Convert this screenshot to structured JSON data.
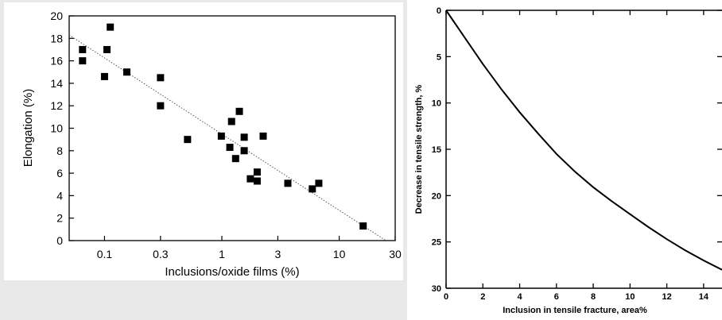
{
  "chart_data": [
    {
      "type": "scatter",
      "xscale": "log",
      "xlabel": "Inclusions/oxide films (%)",
      "ylabel": "Elongation (%)",
      "xlim": [
        0.05,
        30
      ],
      "ylim": [
        0,
        20
      ],
      "xticks": [
        0.1,
        0.3,
        1,
        3,
        10,
        30
      ],
      "xtick_labels": [
        "0.1",
        "0.3",
        "1",
        "3",
        "10",
        "30"
      ],
      "yticks": [
        0,
        2,
        4,
        6,
        8,
        10,
        12,
        14,
        16,
        18,
        20
      ],
      "grid": false,
      "points": [
        {
          "x": 0.065,
          "y": 17.0
        },
        {
          "x": 0.065,
          "y": 16.0
        },
        {
          "x": 0.1,
          "y": 14.6
        },
        {
          "x": 0.105,
          "y": 17.0
        },
        {
          "x": 0.112,
          "y": 19.0
        },
        {
          "x": 0.155,
          "y": 15.0
        },
        {
          "x": 0.3,
          "y": 14.5
        },
        {
          "x": 0.3,
          "y": 12.0
        },
        {
          "x": 0.51,
          "y": 9.0
        },
        {
          "x": 0.99,
          "y": 9.3
        },
        {
          "x": 1.17,
          "y": 8.3
        },
        {
          "x": 1.21,
          "y": 10.6
        },
        {
          "x": 1.31,
          "y": 7.3
        },
        {
          "x": 1.41,
          "y": 11.5
        },
        {
          "x": 1.55,
          "y": 8.0
        },
        {
          "x": 1.55,
          "y": 9.2
        },
        {
          "x": 1.75,
          "y": 5.5
        },
        {
          "x": 2.0,
          "y": 6.1
        },
        {
          "x": 2.0,
          "y": 5.3
        },
        {
          "x": 2.25,
          "y": 9.3
        },
        {
          "x": 3.65,
          "y": 5.1
        },
        {
          "x": 5.9,
          "y": 4.6
        },
        {
          "x": 6.7,
          "y": 5.1
        },
        {
          "x": 16.0,
          "y": 1.3
        }
      ],
      "trend_line": {
        "x": [
          0.05,
          25.0
        ],
        "y": [
          18.3,
          0.0
        ],
        "style": "dotted"
      }
    },
    {
      "type": "line",
      "xlabel": "Inclusion in tensile fracture, area%",
      "ylabel": "Decrease in tensile strength, %",
      "xlim": [
        0,
        15
      ],
      "ylim": [
        0,
        30
      ],
      "y_inverted": true,
      "xticks": [
        0,
        2,
        4,
        6,
        8,
        10,
        12,
        14
      ],
      "yticks": [
        0,
        5,
        10,
        15,
        20,
        25,
        30
      ],
      "grid": false,
      "series": [
        {
          "x": [
            0,
            1,
            2,
            3,
            4,
            5,
            6,
            7,
            8,
            9,
            10,
            11,
            12,
            13,
            14,
            15
          ],
          "y": [
            0,
            2.9,
            5.8,
            8.5,
            11.0,
            13.3,
            15.5,
            17.4,
            19.1,
            20.6,
            22.0,
            23.4,
            24.7,
            25.9,
            27.0,
            28.0
          ]
        }
      ]
    }
  ]
}
